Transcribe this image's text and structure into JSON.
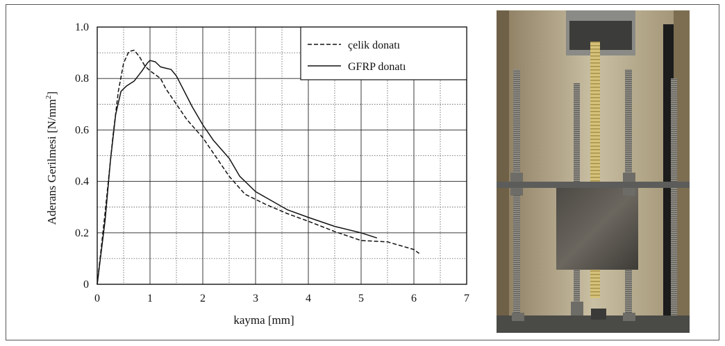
{
  "chart_data": {
    "type": "line",
    "title": "",
    "xlabel": "kayma [mm]",
    "ylabel_main": "Aderans Gerilmesi  [N/mm",
    "ylabel_sup": "2",
    "ylabel_end": "]",
    "xlim": [
      0,
      7
    ],
    "ylim": [
      0,
      1.0
    ],
    "x_ticks": [
      "0",
      "1",
      "2",
      "3",
      "4",
      "5",
      "6",
      "7"
    ],
    "y_ticks": [
      "0",
      "0.2",
      "0.4",
      "0.6",
      "0.8",
      "1.0"
    ],
    "grid": true,
    "legend_position": "top-right",
    "series": [
      {
        "name": "çelik donatı",
        "style": "dashed",
        "color": "#111111",
        "points": [
          [
            0,
            0
          ],
          [
            0.15,
            0.28
          ],
          [
            0.3,
            0.58
          ],
          [
            0.4,
            0.75
          ],
          [
            0.5,
            0.86
          ],
          [
            0.6,
            0.905
          ],
          [
            0.7,
            0.91
          ],
          [
            0.8,
            0.885
          ],
          [
            0.9,
            0.85
          ],
          [
            1.0,
            0.83
          ],
          [
            1.1,
            0.815
          ],
          [
            1.2,
            0.8
          ],
          [
            1.3,
            0.76
          ],
          [
            1.5,
            0.7
          ],
          [
            1.7,
            0.64
          ],
          [
            2.0,
            0.57
          ],
          [
            2.2,
            0.51
          ],
          [
            2.5,
            0.42
          ],
          [
            2.8,
            0.35
          ],
          [
            3.2,
            0.31
          ],
          [
            3.6,
            0.275
          ],
          [
            4.0,
            0.245
          ],
          [
            4.5,
            0.205
          ],
          [
            5.0,
            0.17
          ],
          [
            5.5,
            0.165
          ],
          [
            6.0,
            0.135
          ],
          [
            6.1,
            0.12
          ]
        ]
      },
      {
        "name": "GFRP donatı",
        "style": "solid",
        "color": "#111111",
        "points": [
          [
            0,
            0
          ],
          [
            0.15,
            0.25
          ],
          [
            0.25,
            0.48
          ],
          [
            0.35,
            0.66
          ],
          [
            0.45,
            0.75
          ],
          [
            0.55,
            0.77
          ],
          [
            0.7,
            0.79
          ],
          [
            0.85,
            0.83
          ],
          [
            0.95,
            0.86
          ],
          [
            1.0,
            0.87
          ],
          [
            1.1,
            0.865
          ],
          [
            1.2,
            0.845
          ],
          [
            1.3,
            0.84
          ],
          [
            1.4,
            0.835
          ],
          [
            1.5,
            0.81
          ],
          [
            1.6,
            0.77
          ],
          [
            1.8,
            0.69
          ],
          [
            2.0,
            0.62
          ],
          [
            2.2,
            0.56
          ],
          [
            2.5,
            0.49
          ],
          [
            2.7,
            0.42
          ],
          [
            3.0,
            0.36
          ],
          [
            3.3,
            0.325
          ],
          [
            3.6,
            0.29
          ],
          [
            4.0,
            0.26
          ],
          [
            4.5,
            0.225
          ],
          [
            5.0,
            0.2
          ],
          [
            5.3,
            0.18
          ]
        ]
      }
    ]
  },
  "photo": {
    "description_icon": "test-setup-photo"
  }
}
